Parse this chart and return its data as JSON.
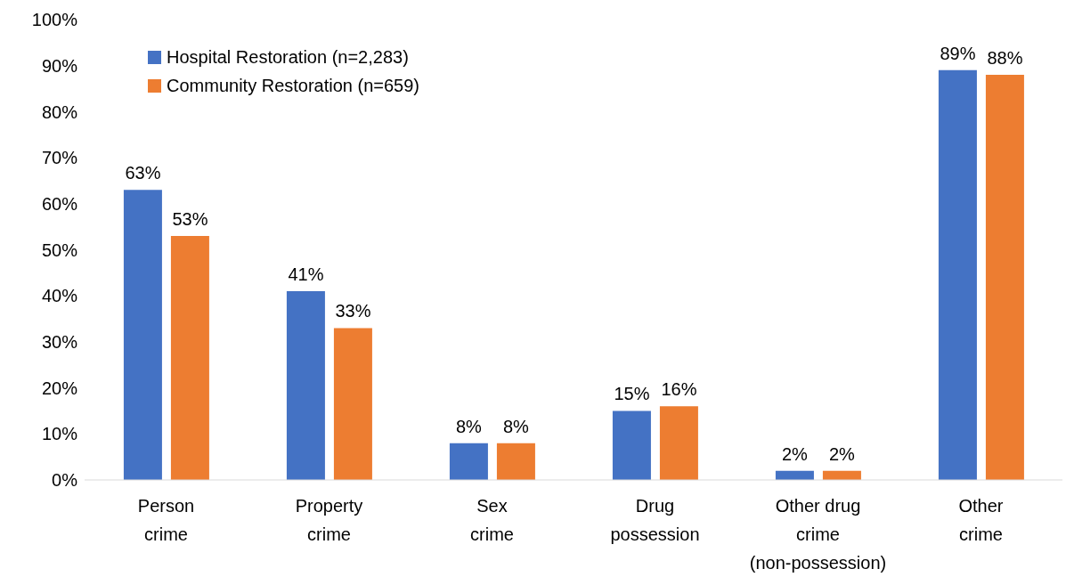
{
  "chart_data": {
    "type": "bar",
    "categories": [
      "Person\ncrime",
      "Property\ncrime",
      "Sex\ncrime",
      "Drug\npossession",
      "Other drug\ncrime\n(non-possession)",
      "Other\ncrime"
    ],
    "series": [
      {
        "name": "Hospital Restoration (n=2,283)",
        "color": "#4472c4",
        "values": [
          63,
          41,
          8,
          15,
          2,
          89
        ],
        "value_labels": [
          "63%",
          "41%",
          "8%",
          "15%",
          "2%",
          "89%"
        ]
      },
      {
        "name": "Community Restoration (n=659)",
        "color": "#ed7d31",
        "values": [
          53,
          33,
          8,
          16,
          2,
          88
        ],
        "value_labels": [
          "53%",
          "33%",
          "8%",
          "16%",
          "2%",
          "88%"
        ]
      }
    ],
    "ylim": [
      0,
      100
    ],
    "yticks": [
      {
        "value": 0,
        "label": "0%"
      },
      {
        "value": 10,
        "label": "10%"
      },
      {
        "value": 20,
        "label": "20%"
      },
      {
        "value": 30,
        "label": "30%"
      },
      {
        "value": 40,
        "label": "40%"
      },
      {
        "value": 50,
        "label": "50%"
      },
      {
        "value": 60,
        "label": "60%"
      },
      {
        "value": 70,
        "label": "70%"
      },
      {
        "value": 80,
        "label": "80%"
      },
      {
        "value": 90,
        "label": "90%"
      },
      {
        "value": 100,
        "label": "100%"
      }
    ],
    "grid": false,
    "legend": "top left"
  }
}
